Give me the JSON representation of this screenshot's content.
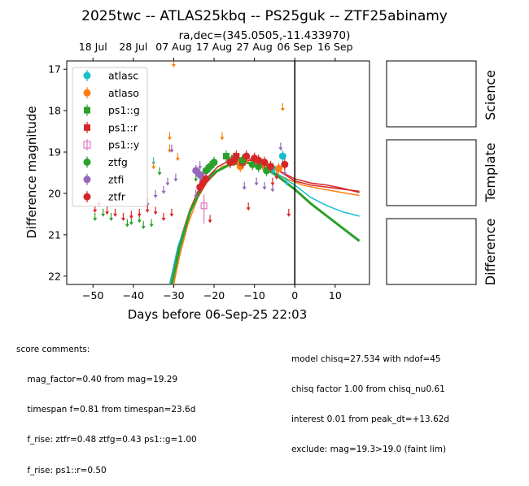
{
  "figure": {
    "title": "2025twc -- ATLAS25kbq -- PS25guk -- ZTF25abinamy",
    "subtitle": "ra,dec=(345.0505,-11.433970)"
  },
  "chart_data": {
    "type": "scatter",
    "title": "2025twc -- ATLAS25kbq -- PS25guk -- ZTF25abinamy",
    "subtitle": "ra,dec=(345.0505,-11.433970)",
    "xlabel": "Days before 06-Sep-25 22:03",
    "ylabel": "Difference magnitude",
    "xlim": [
      -56.5,
      18.5
    ],
    "ylim": [
      22.2,
      16.8
    ],
    "inverted_y": true,
    "x_ticks": [
      -50,
      -40,
      -30,
      -20,
      -10,
      0,
      10
    ],
    "y_ticks": [
      17,
      18,
      19,
      20,
      21,
      22
    ],
    "top_axis_ticks": [
      {
        "x": -50,
        "label": "18 Jul"
      },
      {
        "x": -40,
        "label": "28 Jul"
      },
      {
        "x": -30,
        "label": "07 Aug"
      },
      {
        "x": -20,
        "label": "17 Aug"
      },
      {
        "x": -10,
        "label": "27 Aug"
      },
      {
        "x": 0,
        "label": "06 Sep"
      },
      {
        "x": 10,
        "label": "16 Sep"
      }
    ],
    "vline_x": 0,
    "legend_placement": "top-left",
    "grid": false,
    "series": [
      {
        "name": "atlasc",
        "color": "#17becf",
        "marker": "circle",
        "points": [
          [
            -3,
            19.1
          ],
          [
            -5.5,
            19.4
          ]
        ],
        "limits": [
          [
            -35,
            19.2
          ],
          [
            -2,
            19.7
          ]
        ]
      },
      {
        "name": "atlaso",
        "color": "#ff7f0e",
        "marker": "circle",
        "points": [
          [
            -14,
            19.2
          ],
          [
            -13.5,
            19.35
          ],
          [
            -12.5,
            19.2
          ],
          [
            -8,
            19.3
          ],
          [
            -6,
            19.35
          ],
          [
            -4,
            19.4
          ]
        ],
        "limits": [
          [
            -30,
            16.8
          ],
          [
            -3,
            17.9
          ],
          [
            -31,
            18.6
          ],
          [
            -31,
            18.9
          ],
          [
            -18,
            18.6
          ],
          [
            -35,
            19.3
          ],
          [
            -29,
            19.1
          ]
        ]
      },
      {
        "name": "ps1::g",
        "color": "#2ca02c",
        "marker": "square",
        "points": [
          [
            -17,
            19.1
          ],
          [
            -16,
            19.25
          ],
          [
            -15,
            19.15
          ]
        ]
      },
      {
        "name": "ps1::r",
        "color": "#d62728",
        "marker": "square",
        "points": [
          [
            -14.5,
            19.1
          ],
          [
            -13,
            19.25
          ]
        ]
      },
      {
        "name": "ps1::y",
        "color": "#e377c2",
        "marker": "square",
        "points": [
          [
            -22.5,
            20.3
          ]
        ]
      },
      {
        "name": "ztfg",
        "color": "#2ca02c",
        "marker": "circle",
        "points": [
          [
            -22,
            19.45
          ],
          [
            -21,
            19.35
          ],
          [
            -20,
            19.25
          ],
          [
            -13,
            19.2
          ],
          [
            -9,
            19.35
          ],
          [
            -7,
            19.45
          ],
          [
            -10.5,
            19.3
          ]
        ],
        "limits": [
          [
            -49.5,
            20.55
          ],
          [
            -47.5,
            20.45
          ],
          [
            -45.5,
            20.55
          ],
          [
            -41.5,
            20.7
          ],
          [
            -40.5,
            20.65
          ],
          [
            -38.5,
            20.6
          ],
          [
            -37.5,
            20.75
          ],
          [
            -35.5,
            20.7
          ],
          [
            -33.5,
            19.45
          ],
          [
            -24.5,
            19.6
          ]
        ]
      },
      {
        "name": "ztfi",
        "color": "#9467bd",
        "marker": "circle",
        "points": [
          [
            -24.5,
            19.45
          ],
          [
            -23.5,
            19.55
          ],
          [
            -22.5,
            19.65
          ]
        ],
        "limits": [
          [
            -36.5,
            20.2
          ],
          [
            -34.5,
            20.0
          ],
          [
            -32.5,
            19.9
          ],
          [
            -31.5,
            19.7
          ],
          [
            -30.5,
            18.9
          ],
          [
            -29.5,
            19.6
          ],
          [
            -24.5,
            20.0
          ],
          [
            -23.5,
            19.3
          ],
          [
            -12.5,
            19.8
          ],
          [
            -9.5,
            19.7
          ],
          [
            -7.5,
            19.8
          ],
          [
            -5.5,
            19.85
          ],
          [
            -3.5,
            18.85
          ],
          [
            -2.5,
            19.45
          ]
        ]
      },
      {
        "name": "ztfr",
        "color": "#d62728",
        "marker": "circle",
        "points": [
          [
            -23.5,
            19.85
          ],
          [
            -22.8,
            19.75
          ],
          [
            -22,
            19.65
          ],
          [
            -16,
            19.25
          ],
          [
            -15,
            19.2
          ],
          [
            -12,
            19.1
          ],
          [
            -10,
            19.15
          ],
          [
            -9,
            19.2
          ],
          [
            -7.5,
            19.25
          ],
          [
            -6,
            19.35
          ],
          [
            -2.5,
            19.3
          ]
        ],
        "limits": [
          [
            -49.5,
            20.35
          ],
          [
            -48.5,
            20.2
          ],
          [
            -46.5,
            20.4
          ],
          [
            -44.5,
            20.45
          ],
          [
            -42.5,
            20.55
          ],
          [
            -40.5,
            20.5
          ],
          [
            -38.5,
            20.45
          ],
          [
            -36.5,
            20.35
          ],
          [
            -34.5,
            20.4
          ],
          [
            -32.5,
            20.55
          ],
          [
            -30.5,
            20.45
          ],
          [
            -21,
            20.6
          ],
          [
            -11.5,
            20.3
          ],
          [
            -1.5,
            20.45
          ],
          [
            -4.5,
            19.55
          ],
          [
            -5.5,
            19.7
          ]
        ]
      }
    ],
    "model_curves": [
      {
        "color": "#d62728",
        "width": 1.5,
        "points": [
          [
            -31,
            22.2
          ],
          [
            -29.5,
            21.55
          ],
          [
            -28,
            21.0
          ],
          [
            -26,
            20.4
          ],
          [
            -24,
            19.95
          ],
          [
            -22,
            19.65
          ],
          [
            -19,
            19.35
          ],
          [
            -16,
            19.2
          ],
          [
            -12,
            19.15
          ],
          [
            -8,
            19.25
          ],
          [
            -4,
            19.45
          ],
          [
            0,
            19.7
          ],
          [
            4,
            19.8
          ],
          [
            8,
            19.85
          ],
          [
            12,
            19.9
          ],
          [
            16,
            19.95
          ]
        ]
      },
      {
        "color": "#ff7f0e",
        "width": 1.5,
        "points": [
          [
            -30,
            22.2
          ],
          [
            -28.5,
            21.5
          ],
          [
            -26.5,
            20.75
          ],
          [
            -24,
            20.1
          ],
          [
            -21,
            19.6
          ],
          [
            -18,
            19.35
          ],
          [
            -14,
            19.25
          ],
          [
            -10,
            19.3
          ],
          [
            -6,
            19.45
          ],
          [
            -2,
            19.65
          ],
          [
            2,
            19.8
          ],
          [
            6,
            19.88
          ],
          [
            10,
            19.95
          ],
          [
            16,
            20.05
          ]
        ]
      },
      {
        "color": "#d62728",
        "width": 1.5,
        "points": [
          [
            -31,
            22.2
          ],
          [
            -29,
            21.35
          ],
          [
            -27,
            20.75
          ],
          [
            -25,
            20.25
          ],
          [
            -22,
            19.75
          ],
          [
            -19,
            19.45
          ],
          [
            -15,
            19.25
          ],
          [
            -11,
            19.2
          ],
          [
            -7,
            19.3
          ],
          [
            -3,
            19.5
          ],
          [
            0,
            19.65
          ],
          [
            4,
            19.75
          ],
          [
            8,
            19.8
          ],
          [
            12,
            19.88
          ],
          [
            16,
            19.98
          ]
        ]
      },
      {
        "color": "#17becf",
        "width": 1.5,
        "points": [
          [
            -31,
            22.2
          ],
          [
            -29,
            21.3
          ],
          [
            -26,
            20.45
          ],
          [
            -23,
            19.85
          ],
          [
            -20,
            19.5
          ],
          [
            -16,
            19.3
          ],
          [
            -12,
            19.25
          ],
          [
            -8,
            19.35
          ],
          [
            -4,
            19.55
          ],
          [
            0,
            19.8
          ],
          [
            4,
            20.1
          ],
          [
            8,
            20.3
          ],
          [
            12,
            20.45
          ],
          [
            16,
            20.55
          ]
        ]
      },
      {
        "color": "#2ca02c",
        "width": 3,
        "points": [
          [
            -30.5,
            22.2
          ],
          [
            -28.5,
            21.3
          ],
          [
            -26,
            20.45
          ],
          [
            -23,
            19.85
          ],
          [
            -20,
            19.5
          ],
          [
            -16,
            19.3
          ],
          [
            -12,
            19.25
          ],
          [
            -8,
            19.35
          ],
          [
            -4,
            19.6
          ],
          [
            0,
            19.9
          ],
          [
            4,
            20.25
          ],
          [
            8,
            20.55
          ],
          [
            12,
            20.85
          ],
          [
            16,
            21.15
          ]
        ]
      }
    ]
  },
  "side_panels": {
    "labels": [
      "Science",
      "Template",
      "Difference"
    ]
  },
  "comments": {
    "left": [
      "score comments:",
      "    mag_factor=0.40 from mag=19.29",
      "    timespan f=0.81 from timespan=23.6d",
      "    f_rise: ztfr=0.48 ztfg=0.43 ps1::g=1.00",
      "    f_rise: ps1::r=0.50"
    ],
    "right": [
      "model chisq=27.534 with ndof=45",
      "chisq factor 1.00 from chisq_nu0.61",
      "interest 0.01 from peak_dt=+13.62d",
      "exclude: mag=19.3>19.0 (faint lim)"
    ]
  }
}
